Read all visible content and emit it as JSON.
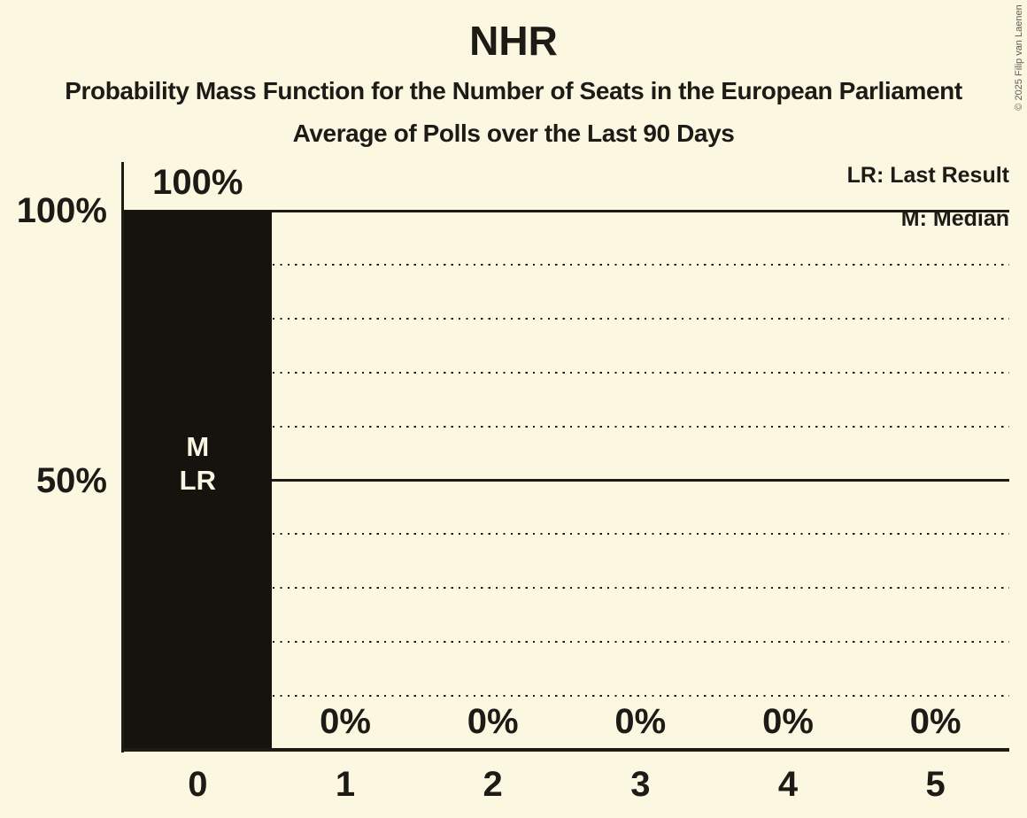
{
  "copyright": "© 2025 Filip van Laenen",
  "colors": {
    "background": "#FBF7E1",
    "ink": "#1C1B16",
    "bar": "#14130E",
    "bar_label": "#FAF6E1",
    "copyright_text": "#5F5E56"
  },
  "chart_data": {
    "type": "bar",
    "title": "NHR",
    "subtitle": "Probability Mass Function for the Number of Seats in the European Parliament",
    "subtitle2": "Average of Polls over the Last 90 Days",
    "categories": [
      "0",
      "1",
      "2",
      "3",
      "4",
      "5"
    ],
    "values": [
      100,
      0,
      0,
      0,
      0,
      0
    ],
    "value_labels": [
      "100%",
      "0%",
      "0%",
      "0%",
      "0%",
      "0%"
    ],
    "xlabel": "",
    "ylabel": "",
    "ylim": [
      0,
      100
    ],
    "yticks": [
      {
        "pct": 100,
        "label": "100%"
      },
      {
        "pct": 50,
        "label": "50%"
      }
    ],
    "solid_gridlines_pct": [
      100,
      50
    ],
    "dotted_gridlines_pct": [
      90,
      80,
      70,
      60,
      40,
      30,
      20,
      10
    ],
    "grid": true,
    "legend": [
      "LR: Last Result",
      "M: Median"
    ],
    "legend_position": "top-right",
    "annotations": [
      {
        "category_index": 0,
        "lines": [
          "M",
          "LR"
        ]
      }
    ]
  }
}
